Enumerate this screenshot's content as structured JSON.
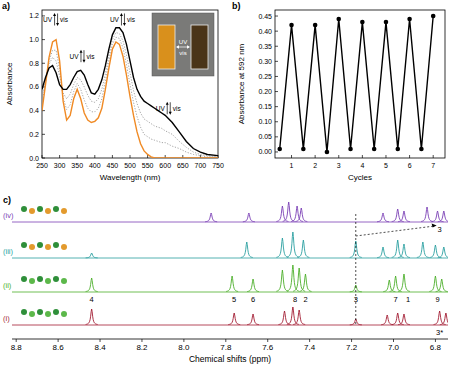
{
  "chart_data": [
    {
      "type": "line",
      "title": "a)",
      "x_label": "Wavelength (nm)",
      "y_label": "Absorbance",
      "x": [
        250,
        260,
        270,
        280,
        290,
        300,
        310,
        320,
        330,
        340,
        350,
        360,
        370,
        380,
        390,
        400,
        410,
        420,
        430,
        440,
        450,
        460,
        470,
        480,
        490,
        500,
        510,
        520,
        530,
        540,
        550,
        560,
        570,
        580,
        590,
        600,
        620,
        640,
        660,
        680,
        700,
        720,
        750
      ],
      "series": [
        {
          "color": "#9a9a9a",
          "line_style": "dotted",
          "values": [
            0.46,
            0.64,
            0.82,
            0.91,
            0.91,
            0.75,
            0.51,
            0.41,
            0.45,
            0.56,
            0.63,
            0.58,
            0.49,
            0.42,
            0.39,
            0.39,
            0.42,
            0.5,
            0.65,
            0.82,
            0.96,
            1.02,
            1.01,
            0.93,
            0.79,
            0.62,
            0.47,
            0.35,
            0.26,
            0.2,
            0.18,
            0.16,
            0.15,
            0.14,
            0.13,
            0.13,
            0.1,
            0.08,
            0.05,
            0.03,
            0.02,
            0.01,
            0.01
          ]
        },
        {
          "color": "#9a9a9a",
          "line_style": "dotted",
          "values": [
            0.52,
            0.66,
            0.79,
            0.85,
            0.82,
            0.69,
            0.55,
            0.5,
            0.54,
            0.62,
            0.68,
            0.66,
            0.6,
            0.53,
            0.48,
            0.47,
            0.5,
            0.58,
            0.71,
            0.87,
            1.0,
            1.06,
            1.05,
            0.99,
            0.87,
            0.72,
            0.57,
            0.46,
            0.38,
            0.33,
            0.31,
            0.29,
            0.27,
            0.26,
            0.25,
            0.23,
            0.2,
            0.14,
            0.09,
            0.05,
            0.03,
            0.02,
            0.01
          ]
        },
        {
          "color": "#f08a24",
          "line_style": "solid",
          "values": [
            0.4,
            0.62,
            0.85,
            0.98,
            1.0,
            0.82,
            0.48,
            0.32,
            0.36,
            0.5,
            0.58,
            0.5,
            0.38,
            0.32,
            0.3,
            0.31,
            0.34,
            0.42,
            0.58,
            0.76,
            0.92,
            0.98,
            0.96,
            0.86,
            0.7,
            0.52,
            0.36,
            0.22,
            0.12,
            0.06,
            0.03,
            0.01,
            0,
            0,
            0,
            0,
            0,
            0,
            0,
            0,
            0,
            0,
            0
          ]
        },
        {
          "color": "#000000",
          "line_style": "solid",
          "values": [
            0.58,
            0.68,
            0.76,
            0.78,
            0.72,
            0.62,
            0.58,
            0.58,
            0.62,
            0.68,
            0.73,
            0.74,
            0.7,
            0.62,
            0.55,
            0.54,
            0.58,
            0.66,
            0.78,
            0.92,
            1.04,
            1.1,
            1.1,
            1.06,
            0.96,
            0.82,
            0.68,
            0.58,
            0.52,
            0.48,
            0.46,
            0.44,
            0.42,
            0.4,
            0.38,
            0.36,
            0.3,
            0.22,
            0.14,
            0.08,
            0.05,
            0.03,
            0.02
          ]
        }
      ],
      "xlim": [
        250,
        750
      ],
      "xticks": [
        250,
        300,
        350,
        400,
        450,
        500,
        550,
        600,
        650,
        700,
        750
      ],
      "ylim": [
        0,
        1.25
      ],
      "yticks": [
        {
          "value": 0,
          "label": "0.0"
        },
        0.2,
        0.4,
        0.6,
        0.8,
        {
          "value": 1,
          "label": "1.0"
        },
        1.2
      ],
      "annotations": [
        {
          "x": 290,
          "y": 1.17,
          "labels": [
            "UV",
            "vis"
          ]
        },
        {
          "x": 365,
          "y": 0.86,
          "labels": [
            "UV",
            "vis"
          ]
        },
        {
          "x": 480,
          "y": 1.17,
          "labels": [
            "UV",
            "vis"
          ]
        },
        {
          "x": 610,
          "y": 0.42,
          "labels": [
            "UV",
            "vis"
          ]
        }
      ],
      "inset": {
        "labels": [
          "UV",
          "vis"
        ]
      }
    },
    {
      "type": "line",
      "title": "b)",
      "x_label": "Cycles",
      "y_label": "Absorbance at 592 nm",
      "x": [
        0.5,
        1,
        1.5,
        2,
        2.5,
        3,
        3.5,
        4,
        4.5,
        5,
        5.5,
        6,
        6.5,
        7
      ],
      "series": [
        {
          "color": "#000000",
          "marker": "circle",
          "line_style": "solid",
          "values": [
            0.01,
            0.42,
            0.01,
            0.42,
            0.0,
            0.44,
            0.01,
            0.43,
            0.01,
            0.43,
            0.01,
            0.44,
            0.01,
            0.45
          ]
        }
      ],
      "xlim": [
        0.3,
        7.5
      ],
      "xticks": [
        1,
        2,
        3,
        4,
        5,
        6,
        7
      ],
      "ylim": [
        -0.02,
        0.47
      ],
      "yticks": [
        {
          "value": 0,
          "label": "0.00"
        },
        {
          "value": 0.05,
          "label": "0.05"
        },
        {
          "value": 0.1,
          "label": "0.10"
        },
        {
          "value": 0.15,
          "label": "0.15"
        },
        {
          "value": 0.2,
          "label": "0.20"
        },
        {
          "value": 0.25,
          "label": "0.25"
        },
        {
          "value": 0.3,
          "label": "0.30"
        },
        {
          "value": 0.35,
          "label": "0.35"
        },
        {
          "value": 0.4,
          "label": "0.40"
        },
        {
          "value": 0.45,
          "label": "0.45"
        }
      ]
    },
    {
      "type": "spectrum",
      "title": "c)",
      "x_label": "Chemical shifts (ppm)",
      "xlim": [
        8.82,
        6.74
      ],
      "xticks": [
        8.8,
        8.6,
        8.4,
        8.2,
        {
          "value": 8,
          "label": "8.0"
        },
        7.8,
        7.6,
        7.4,
        7.2,
        {
          "value": 7,
          "label": "7.0"
        },
        6.8
      ],
      "tick_labels": "x",
      "series": [
        {
          "name": "(i)",
          "color": "#a31d33",
          "peaks": [
            {
              "ppm": 8.44,
              "intensity": 16
            },
            {
              "ppm": 7.76,
              "intensity": 12
            },
            {
              "ppm": 7.67,
              "intensity": 11
            },
            {
              "ppm": 7.52,
              "intensity": 14
            },
            {
              "ppm": 7.48,
              "intensity": 18
            },
            {
              "ppm": 7.45,
              "intensity": 15
            },
            {
              "ppm": 7.18,
              "intensity": 6
            },
            {
              "ppm": 7.03,
              "intensity": 10
            },
            {
              "ppm": 6.98,
              "intensity": 12
            },
            {
              "ppm": 6.95,
              "intensity": 11
            },
            {
              "ppm": 6.78,
              "intensity": 14
            },
            {
              "ppm": 6.75,
              "intensity": 12
            }
          ],
          "labels": [
            {
              "text": "3*",
              "ppm": 6.78
            }
          ]
        },
        {
          "name": "(ii)",
          "color": "#4caf2a",
          "peaks": [
            {
              "ppm": 8.44,
              "intensity": 14
            },
            {
              "ppm": 7.77,
              "intensity": 16
            },
            {
              "ppm": 7.67,
              "intensity": 13
            },
            {
              "ppm": 7.53,
              "intensity": 22
            },
            {
              "ppm": 7.48,
              "intensity": 27
            },
            {
              "ppm": 7.45,
              "intensity": 24
            },
            {
              "ppm": 7.42,
              "intensity": 18
            },
            {
              "ppm": 7.18,
              "intensity": 7
            },
            {
              "ppm": 7.02,
              "intensity": 12
            },
            {
              "ppm": 6.99,
              "intensity": 16
            },
            {
              "ppm": 6.95,
              "intensity": 18
            },
            {
              "ppm": 6.8,
              "intensity": 16
            },
            {
              "ppm": 6.77,
              "intensity": 13
            }
          ],
          "labels": [
            {
              "text": "4",
              "ppm": 8.44
            },
            {
              "text": "5",
              "ppm": 7.76
            },
            {
              "text": "6",
              "ppm": 7.67
            },
            {
              "text": "8",
              "ppm": 7.47
            },
            {
              "text": "2",
              "ppm": 7.42
            },
            {
              "text": "3",
              "ppm": 7.18
            },
            {
              "text": "7",
              "ppm": 6.99
            },
            {
              "text": "1",
              "ppm": 6.93
            },
            {
              "text": "9",
              "ppm": 6.79
            }
          ]
        },
        {
          "name": "(iii)",
          "color": "#2a9fa0",
          "peaks": [
            {
              "ppm": 8.44,
              "intensity": 5
            },
            {
              "ppm": 7.7,
              "intensity": 16
            },
            {
              "ppm": 7.53,
              "intensity": 20
            },
            {
              "ppm": 7.48,
              "intensity": 26
            },
            {
              "ppm": 7.43,
              "intensity": 18
            },
            {
              "ppm": 7.18,
              "intensity": 17
            },
            {
              "ppm": 7.05,
              "intensity": 11
            },
            {
              "ppm": 6.98,
              "intensity": 18
            },
            {
              "ppm": 6.95,
              "intensity": 14
            },
            {
              "ppm": 6.86,
              "intensity": 16
            },
            {
              "ppm": 6.8,
              "intensity": 13
            },
            {
              "ppm": 6.76,
              "intensity": 11
            }
          ],
          "labels": []
        },
        {
          "name": "(iv)",
          "color": "#7b3fb5",
          "peaks": [
            {
              "ppm": 7.87,
              "intensity": 9
            },
            {
              "ppm": 7.69,
              "intensity": 9
            },
            {
              "ppm": 7.53,
              "intensity": 16
            },
            {
              "ppm": 7.5,
              "intensity": 20
            },
            {
              "ppm": 7.46,
              "intensity": 16
            },
            {
              "ppm": 7.44,
              "intensity": 14
            },
            {
              "ppm": 7.05,
              "intensity": 9
            },
            {
              "ppm": 6.98,
              "intensity": 13
            },
            {
              "ppm": 6.95,
              "intensity": 11
            },
            {
              "ppm": 6.84,
              "intensity": 15
            },
            {
              "ppm": 6.79,
              "intensity": 11
            },
            {
              "ppm": 6.76,
              "intensity": 11
            }
          ],
          "labels": [
            {
              "text": "3",
              "ppm": 6.78
            }
          ]
        }
      ]
    }
  ]
}
